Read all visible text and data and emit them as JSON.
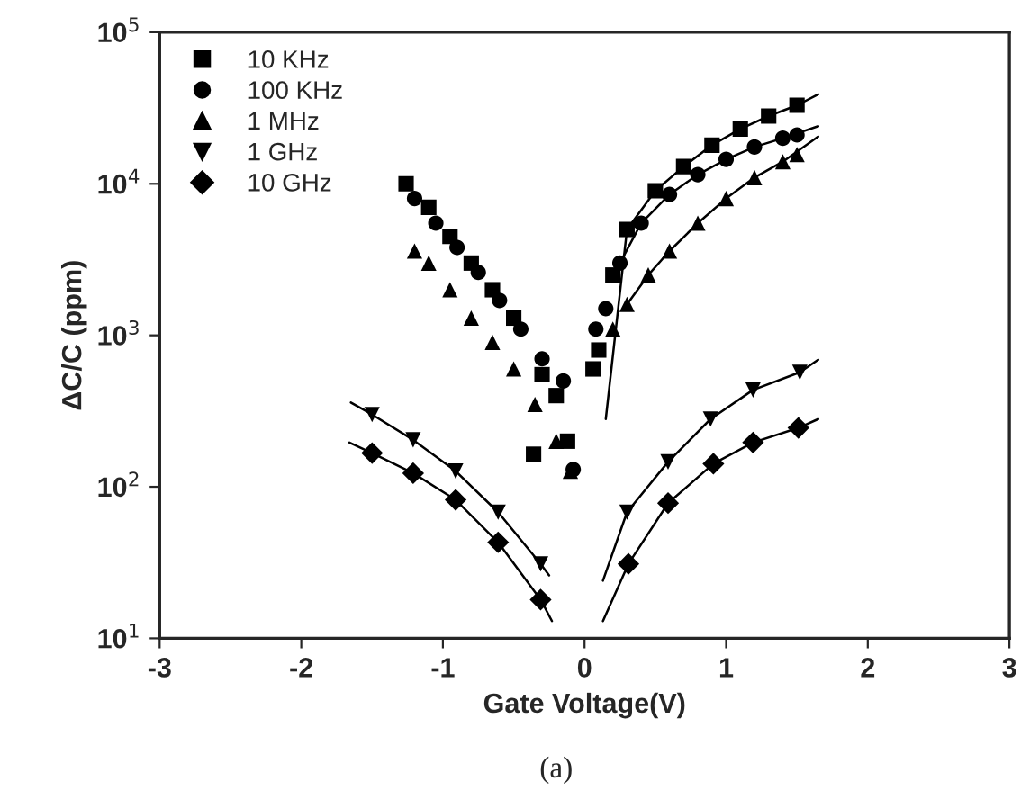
{
  "chart_data": {
    "type": "scatter",
    "xlabel": "Gate Voltage(V)",
    "ylabel": "ΔC/C (ppm)",
    "log": "y",
    "xlim": [
      -3,
      3
    ],
    "ylim": [
      10,
      100000
    ],
    "xticks": [
      -3,
      -2,
      -1,
      0,
      1,
      2,
      3
    ],
    "yticks": [
      {
        "value": 10,
        "label": "10$^{1}$"
      },
      {
        "value": 100,
        "label": "10$^{2}$"
      },
      {
        "value": 1000,
        "label": "10$^{3}$"
      },
      {
        "value": 10000,
        "label": "10$^{4}$"
      },
      {
        "value": 100000,
        "label": "10$^{5}$"
      }
    ],
    "legend": "top left",
    "grid": false,
    "annotations": [
      "(a)"
    ],
    "series": [
      {
        "name": "10 KHz",
        "color": "#000000",
        "marker": "square",
        "x": [
          -1.26,
          -1.1,
          -0.95,
          -0.8,
          -0.65,
          -0.5,
          -0.36,
          -0.3,
          -0.2,
          -0.12,
          0.06,
          0.1,
          0.2,
          0.3,
          0.5,
          0.7,
          0.9,
          1.1,
          1.3,
          1.5
        ],
        "values": [
          10000,
          7000,
          4500,
          3000,
          2000,
          1300,
          164,
          550,
          400,
          200,
          600,
          800,
          2500,
          5000,
          9000,
          13000,
          18000,
          23000,
          28000,
          33000
        ]
      },
      {
        "name": "100 KHz",
        "color": "#000000",
        "marker": "circle",
        "x": [
          -1.2,
          -1.05,
          -0.9,
          -0.75,
          -0.6,
          -0.45,
          -0.3,
          -0.15,
          -0.08,
          0.08,
          0.15,
          0.25,
          0.4,
          0.6,
          0.8,
          1.0,
          1.2,
          1.4,
          1.5
        ],
        "values": [
          8000,
          5500,
          3800,
          2600,
          1700,
          1100,
          700,
          500,
          130,
          1100,
          1500,
          3000,
          5500,
          8500,
          11500,
          14500,
          17500,
          20000,
          21000
        ]
      },
      {
        "name": "1 MHz",
        "color": "#000000",
        "marker": "triangle",
        "x": [
          -1.2,
          -1.1,
          -0.95,
          -0.8,
          -0.65,
          -0.5,
          -0.35,
          -0.2,
          -0.1,
          0.2,
          0.3,
          0.45,
          0.6,
          0.8,
          1.0,
          1.2,
          1.4,
          1.5
        ],
        "values": [
          3600,
          3000,
          2000,
          1300,
          900,
          600,
          350,
          200,
          127,
          1100,
          1600,
          2500,
          3600,
          5500,
          8000,
          11000,
          14000,
          15600
        ]
      },
      {
        "name": "1 GHz",
        "color": "#000000",
        "marker": "triangle_down",
        "x": [
          -1.5,
          -1.21,
          -0.91,
          -0.61,
          -0.31,
          0.3,
          0.59,
          0.89,
          1.19,
          1.52
        ],
        "values": [
          300,
          204,
          127,
          68,
          31,
          68,
          146,
          280,
          436,
          570
        ]
      },
      {
        "name": "10 GHz",
        "color": "#000000",
        "marker": "diamond",
        "x": [
          -1.5,
          -1.21,
          -0.91,
          -0.61,
          -0.31,
          0.31,
          0.59,
          0.91,
          1.19,
          1.51
        ],
        "values": [
          167,
          123,
          82,
          43,
          18,
          31,
          78,
          142,
          196,
          245
        ]
      },
      {
        "type": "line",
        "color": "#000000",
        "x": [
          -1.65,
          -1.5,
          -1.21,
          -0.91,
          -0.61,
          -0.31,
          -0.25
        ],
        "values": [
          360,
          300,
          204,
          127,
          68,
          31,
          26
        ]
      },
      {
        "type": "line",
        "color": "#000000",
        "x": [
          -1.66,
          -1.5,
          -1.21,
          -0.91,
          -0.61,
          -0.31,
          -0.23
        ],
        "values": [
          196,
          167,
          123,
          82,
          43,
          18,
          13
        ]
      },
      {
        "type": "line",
        "color": "#000000",
        "x": [
          0.13,
          0.3,
          0.59,
          0.89,
          1.19,
          1.52,
          1.65
        ],
        "values": [
          24,
          68,
          146,
          280,
          436,
          570,
          690
        ]
      },
      {
        "type": "line",
        "color": "#000000",
        "x": [
          0.13,
          0.31,
          0.59,
          0.91,
          1.19,
          1.51,
          1.65
        ],
        "values": [
          13,
          31,
          78,
          142,
          196,
          245,
          280
        ]
      },
      {
        "type": "line",
        "color": "#000000",
        "x": [
          0.15,
          0.3,
          0.5,
          0.7,
          0.9,
          1.1,
          1.3,
          1.5,
          1.65
        ],
        "values": [
          280,
          5000,
          9000,
          13000,
          18000,
          23000,
          28000,
          33000,
          39000
        ]
      },
      {
        "type": "line",
        "color": "#000000",
        "x": [
          0.25,
          0.4,
          0.6,
          0.8,
          1.0,
          1.2,
          1.4,
          1.65
        ],
        "values": [
          3000,
          5500,
          8500,
          11500,
          14500,
          17500,
          20000,
          24000
        ]
      },
      {
        "type": "line",
        "color": "#000000",
        "x": [
          0.3,
          0.45,
          0.6,
          0.8,
          1.0,
          1.2,
          1.4,
          1.65
        ],
        "values": [
          1600,
          2500,
          3600,
          5500,
          8000,
          11000,
          14000,
          20500
        ]
      }
    ]
  }
}
